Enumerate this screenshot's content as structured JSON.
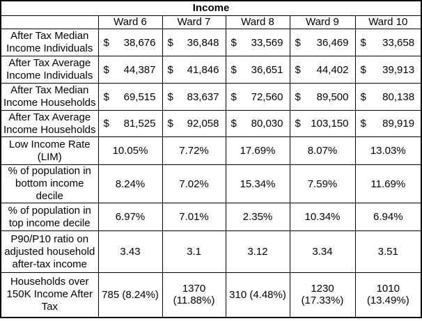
{
  "title": "Income",
  "chart_data": {
    "type": "table",
    "title": "Income",
    "corner_label": "",
    "columns": [
      "Ward 6",
      "Ward 7",
      "Ward 8",
      "Ward 9",
      "Ward 10"
    ],
    "currency_symbol": "$",
    "rows": [
      {
        "label": "After Tax Median Income Individuals",
        "format": "currency",
        "values": [
          "38,676",
          "36,848",
          "33,569",
          "36,469",
          "33,658"
        ]
      },
      {
        "label": "After Tax Average Income Individuals",
        "format": "currency",
        "values": [
          "44,387",
          "41,846",
          "36,651",
          "44,402",
          "39,913"
        ]
      },
      {
        "label": "After Tax Median Income Households",
        "format": "currency",
        "values": [
          "69,515",
          "83,637",
          "72,560",
          "89,500",
          "80,138"
        ]
      },
      {
        "label": "After Tax Average Income Households",
        "format": "currency",
        "values": [
          "81,525",
          "92,058",
          "80,030",
          "103,150",
          "89,919"
        ]
      },
      {
        "label": "Low Income Rate (LIM)",
        "format": "percent",
        "values": [
          "10.05%",
          "7.72%",
          "17.69%",
          "8.07%",
          "13.03%"
        ]
      },
      {
        "label": "% of population in bottom income decile",
        "format": "percent",
        "values": [
          "8.24%",
          "7.02%",
          "15.34%",
          "7.59%",
          "11.69%"
        ]
      },
      {
        "label": "% of population in top  income decile",
        "format": "percent",
        "values": [
          "6.97%",
          "7.01%",
          "2.35%",
          "10.34%",
          "6.94%"
        ]
      },
      {
        "label": "P90/P10 ratio on adjusted household after-tax income",
        "format": "number",
        "values": [
          "3.43",
          "3.1",
          "3.12",
          "3.34",
          "3.51"
        ]
      },
      {
        "label": "Households over 150K Income After Tax",
        "format": "text",
        "values": [
          "785 (8.24%)",
          "1370 (11.88%)",
          "310 (4.48%)",
          "1230 (17.33%)",
          "1010 (13.49%)"
        ]
      }
    ]
  }
}
